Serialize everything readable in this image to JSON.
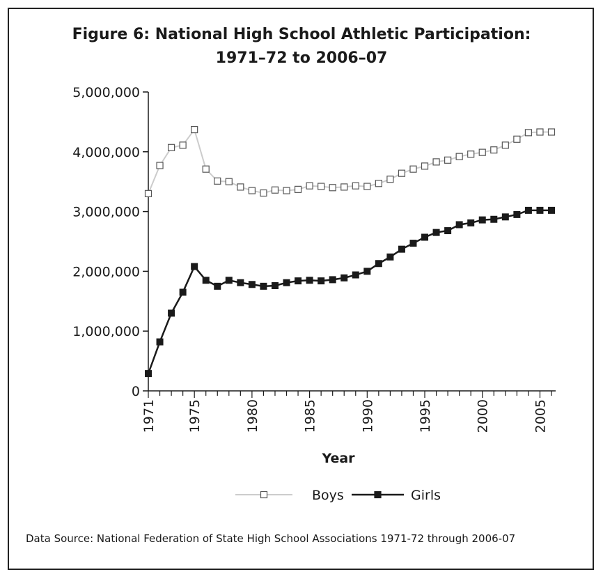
{
  "chart_data": {
    "type": "line",
    "title_line1": "Figure 6: National High School Athletic Participation:",
    "title_line2": "1971–72 to 2006–07",
    "xlabel": "Year",
    "ylabel": "",
    "ylim": [
      0,
      5000000
    ],
    "xlim": [
      1971,
      2006
    ],
    "y_ticks": [
      0,
      1000000,
      2000000,
      3000000,
      4000000,
      5000000
    ],
    "y_tick_labels": [
      "0",
      "1,000,000",
      "2,000,000",
      "3,000,000",
      "4,000,000",
      "5,000,000"
    ],
    "x_tick_labels": [
      1971,
      1975,
      1980,
      1985,
      1990,
      1995,
      2000,
      2005
    ],
    "grid": false,
    "legend_position": "bottom-center",
    "x": [
      1971,
      1972,
      1973,
      1974,
      1975,
      1976,
      1977,
      1978,
      1979,
      1980,
      1981,
      1982,
      1983,
      1984,
      1985,
      1986,
      1987,
      1988,
      1989,
      1990,
      1991,
      1992,
      1993,
      1994,
      1995,
      1996,
      1997,
      1998,
      1999,
      2000,
      2001,
      2002,
      2003,
      2004,
      2005,
      2006
    ],
    "series": [
      {
        "name": "Boys",
        "color": "#cccccc",
        "marker": "hollow-square",
        "values": [
          3300000,
          3770000,
          4070000,
          4110000,
          4370000,
          3710000,
          3510000,
          3500000,
          3410000,
          3350000,
          3310000,
          3360000,
          3350000,
          3370000,
          3430000,
          3420000,
          3400000,
          3410000,
          3430000,
          3420000,
          3470000,
          3540000,
          3640000,
          3710000,
          3760000,
          3830000,
          3860000,
          3920000,
          3960000,
          3990000,
          4030000,
          4110000,
          4210000,
          4320000,
          4330000,
          4330000
        ]
      },
      {
        "name": "Girls",
        "color": "#1a1a1a",
        "marker": "filled-square",
        "values": [
          290000,
          820000,
          1300000,
          1650000,
          2080000,
          1850000,
          1750000,
          1850000,
          1810000,
          1780000,
          1750000,
          1760000,
          1810000,
          1840000,
          1850000,
          1840000,
          1860000,
          1890000,
          1940000,
          2000000,
          2130000,
          2240000,
          2370000,
          2470000,
          2570000,
          2650000,
          2680000,
          2780000,
          2810000,
          2860000,
          2870000,
          2910000,
          2950000,
          3020000,
          3020000,
          3020000
        ]
      }
    ]
  },
  "source_note": "Data Source: National Federation of State High School Associations 1971-72 through 2006-07"
}
